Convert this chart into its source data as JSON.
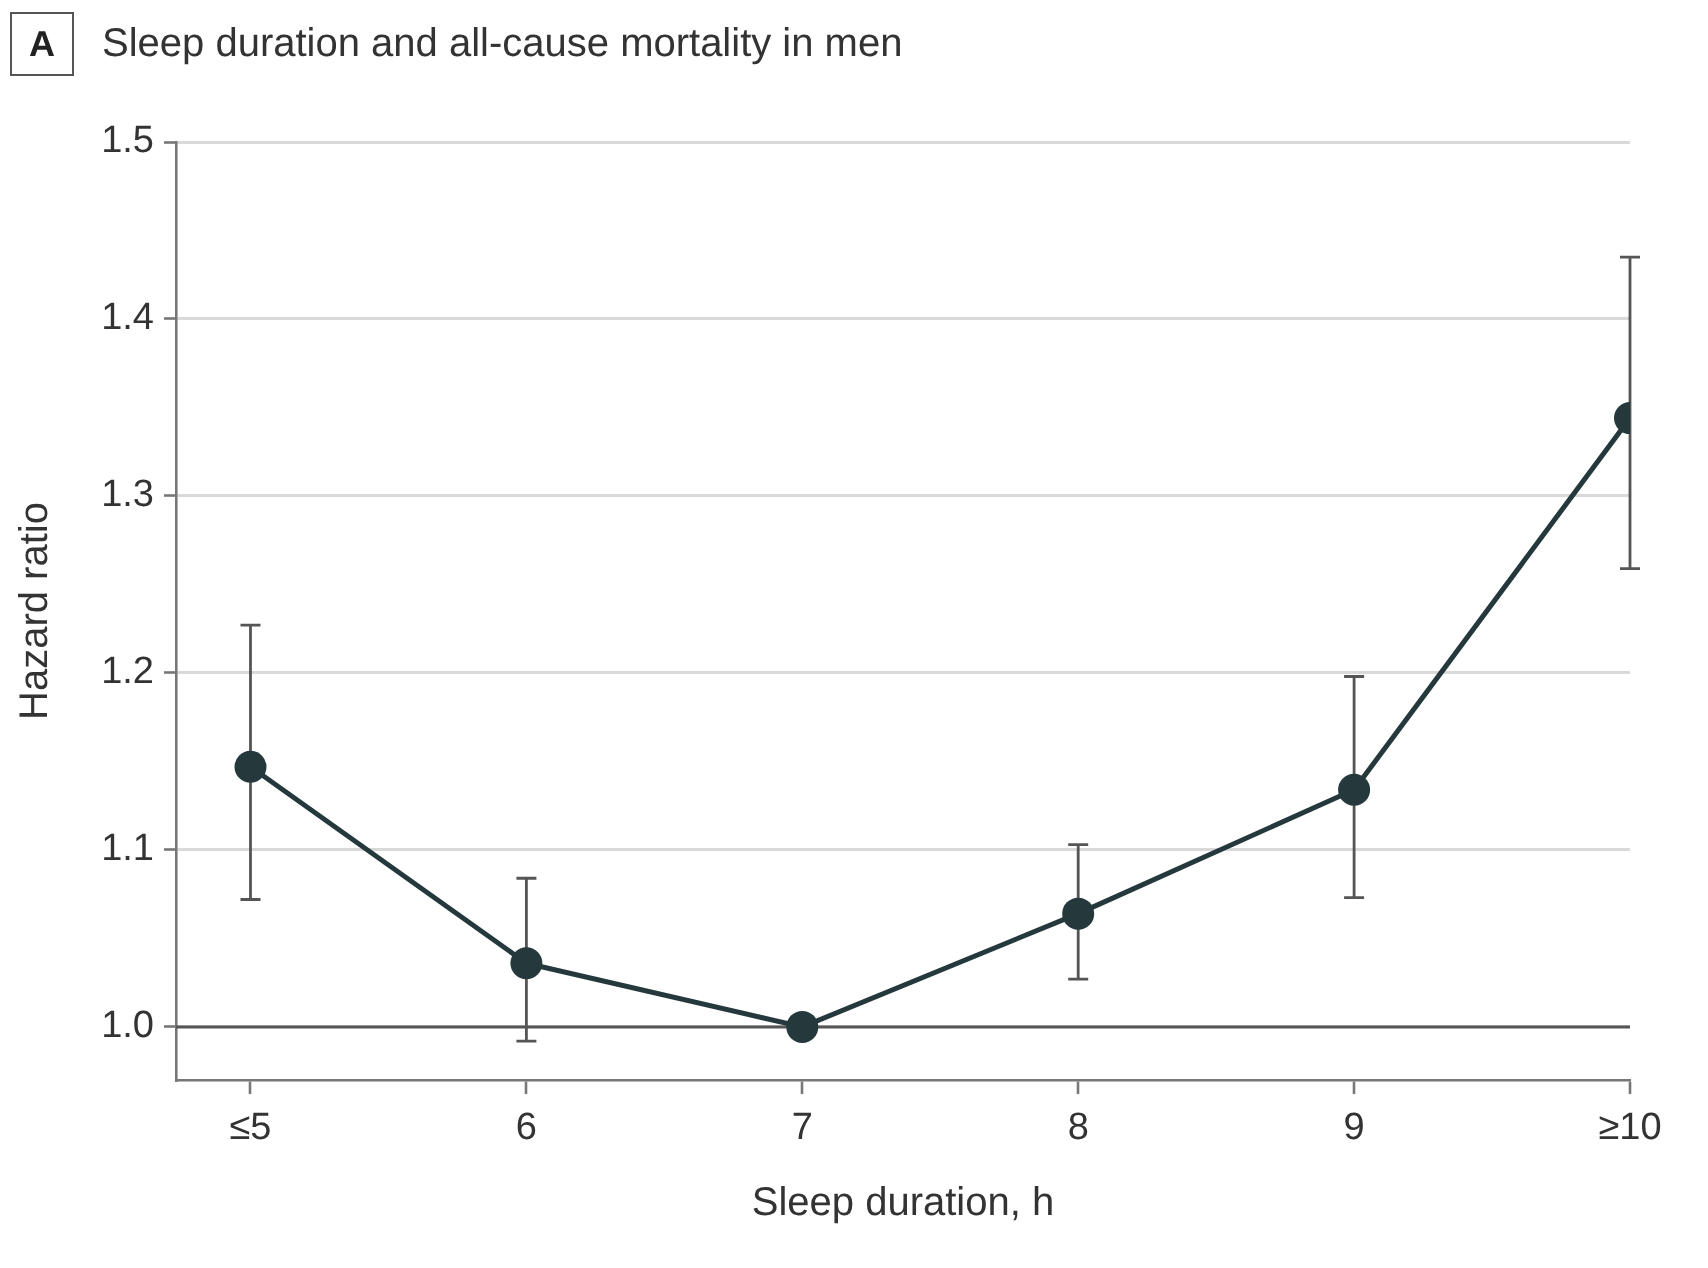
{
  "chart_data": {
    "type": "line",
    "title": "Sleep duration and all-cause mortality in men",
    "annotations": [
      "A"
    ],
    "xlabel": "Sleep duration, h",
    "ylabel": "Hazard ratio",
    "categories": [
      "≤5",
      "6",
      "7",
      "8",
      "9",
      "≥10"
    ],
    "series": [
      {
        "color": "#25393d",
        "values": [
          1.147,
          1.036,
          1.0,
          1.064,
          1.134,
          1.344
        ],
        "errors": [
          [
            1.072,
            1.227
          ],
          [
            0.992,
            1.084
          ],
          null,
          [
            1.027,
            1.103
          ],
          [
            1.073,
            1.198
          ],
          [
            1.259,
            1.435
          ]
        ]
      }
    ],
    "ylim": [
      0.97,
      1.5
    ],
    "yticks": [
      {
        "value": 1,
        "label": "1.0"
      },
      1.1,
      1.2,
      1.3,
      1.4,
      1.5
    ],
    "grid": "y",
    "marker": "circle",
    "line_style": "solid",
    "ref_lines": [
      {
        "axis": "y",
        "value": 1,
        "color": "#555555"
      }
    ]
  }
}
